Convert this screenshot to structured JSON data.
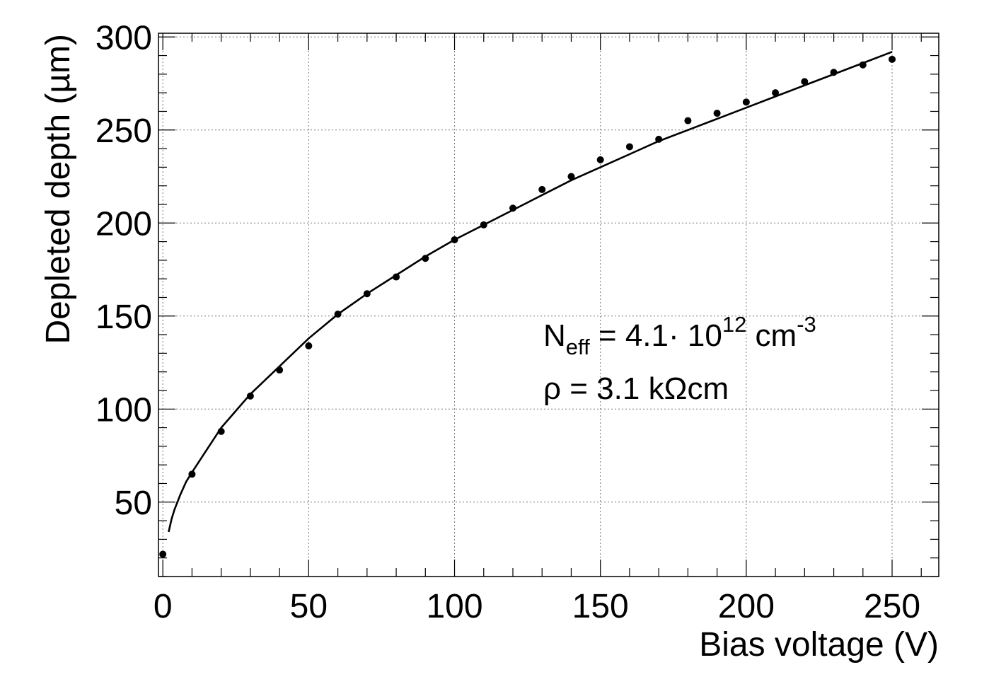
{
  "chart_data": {
    "type": "scatter",
    "xlabel": "Bias voltage (V)",
    "ylabel": "Depleted depth (µm)",
    "xlim": [
      -1.5,
      266
    ],
    "ylim": [
      10,
      302
    ],
    "xticks": [
      0,
      50,
      100,
      150,
      200,
      250
    ],
    "yticks": [
      50,
      100,
      150,
      200,
      250,
      300
    ],
    "xtick_labels": [
      "0",
      "50",
      "100",
      "150",
      "200",
      "250"
    ],
    "ytick_labels": [
      "50",
      "100",
      "150",
      "200",
      "250",
      "300"
    ],
    "grid": true,
    "series": [
      {
        "kind": "points",
        "x": [
          0,
          10,
          20,
          30,
          40,
          50,
          60,
          70,
          80,
          90,
          100,
          110,
          120,
          130,
          140,
          150,
          160,
          170,
          180,
          190,
          200,
          210,
          220,
          230,
          240,
          250
        ],
        "y": [
          22,
          65,
          88,
          107,
          121,
          134,
          151,
          162,
          171,
          181,
          191,
          199,
          208,
          218,
          225,
          234,
          241,
          245,
          255,
          259,
          265,
          270,
          276,
          281,
          285,
          288
        ]
      },
      {
        "kind": "fit-line",
        "x": [
          2,
          3,
          4,
          6,
          8,
          10,
          15,
          20,
          25,
          30,
          40,
          50,
          60,
          70,
          80,
          90,
          100,
          110,
          120,
          130,
          140,
          150,
          160,
          170,
          180,
          190,
          200,
          210,
          220,
          230,
          240,
          250
        ],
        "y": [
          34,
          41,
          46,
          54,
          61,
          66,
          78,
          90,
          99,
          108,
          123,
          138,
          151,
          162,
          172,
          182,
          191,
          199,
          207,
          215,
          223,
          230,
          237,
          244,
          250,
          256,
          262,
          268,
          274,
          280,
          286,
          292
        ]
      }
    ],
    "annotations": {
      "neff_base": "N",
      "neff_sub": "eff",
      "neff_text": " = 4.1· 10",
      "neff_exp": "12",
      "neff_unit": " cm",
      "neff_unit_exp": "-3",
      "rho": "ρ = 3.1 kΩcm"
    }
  }
}
